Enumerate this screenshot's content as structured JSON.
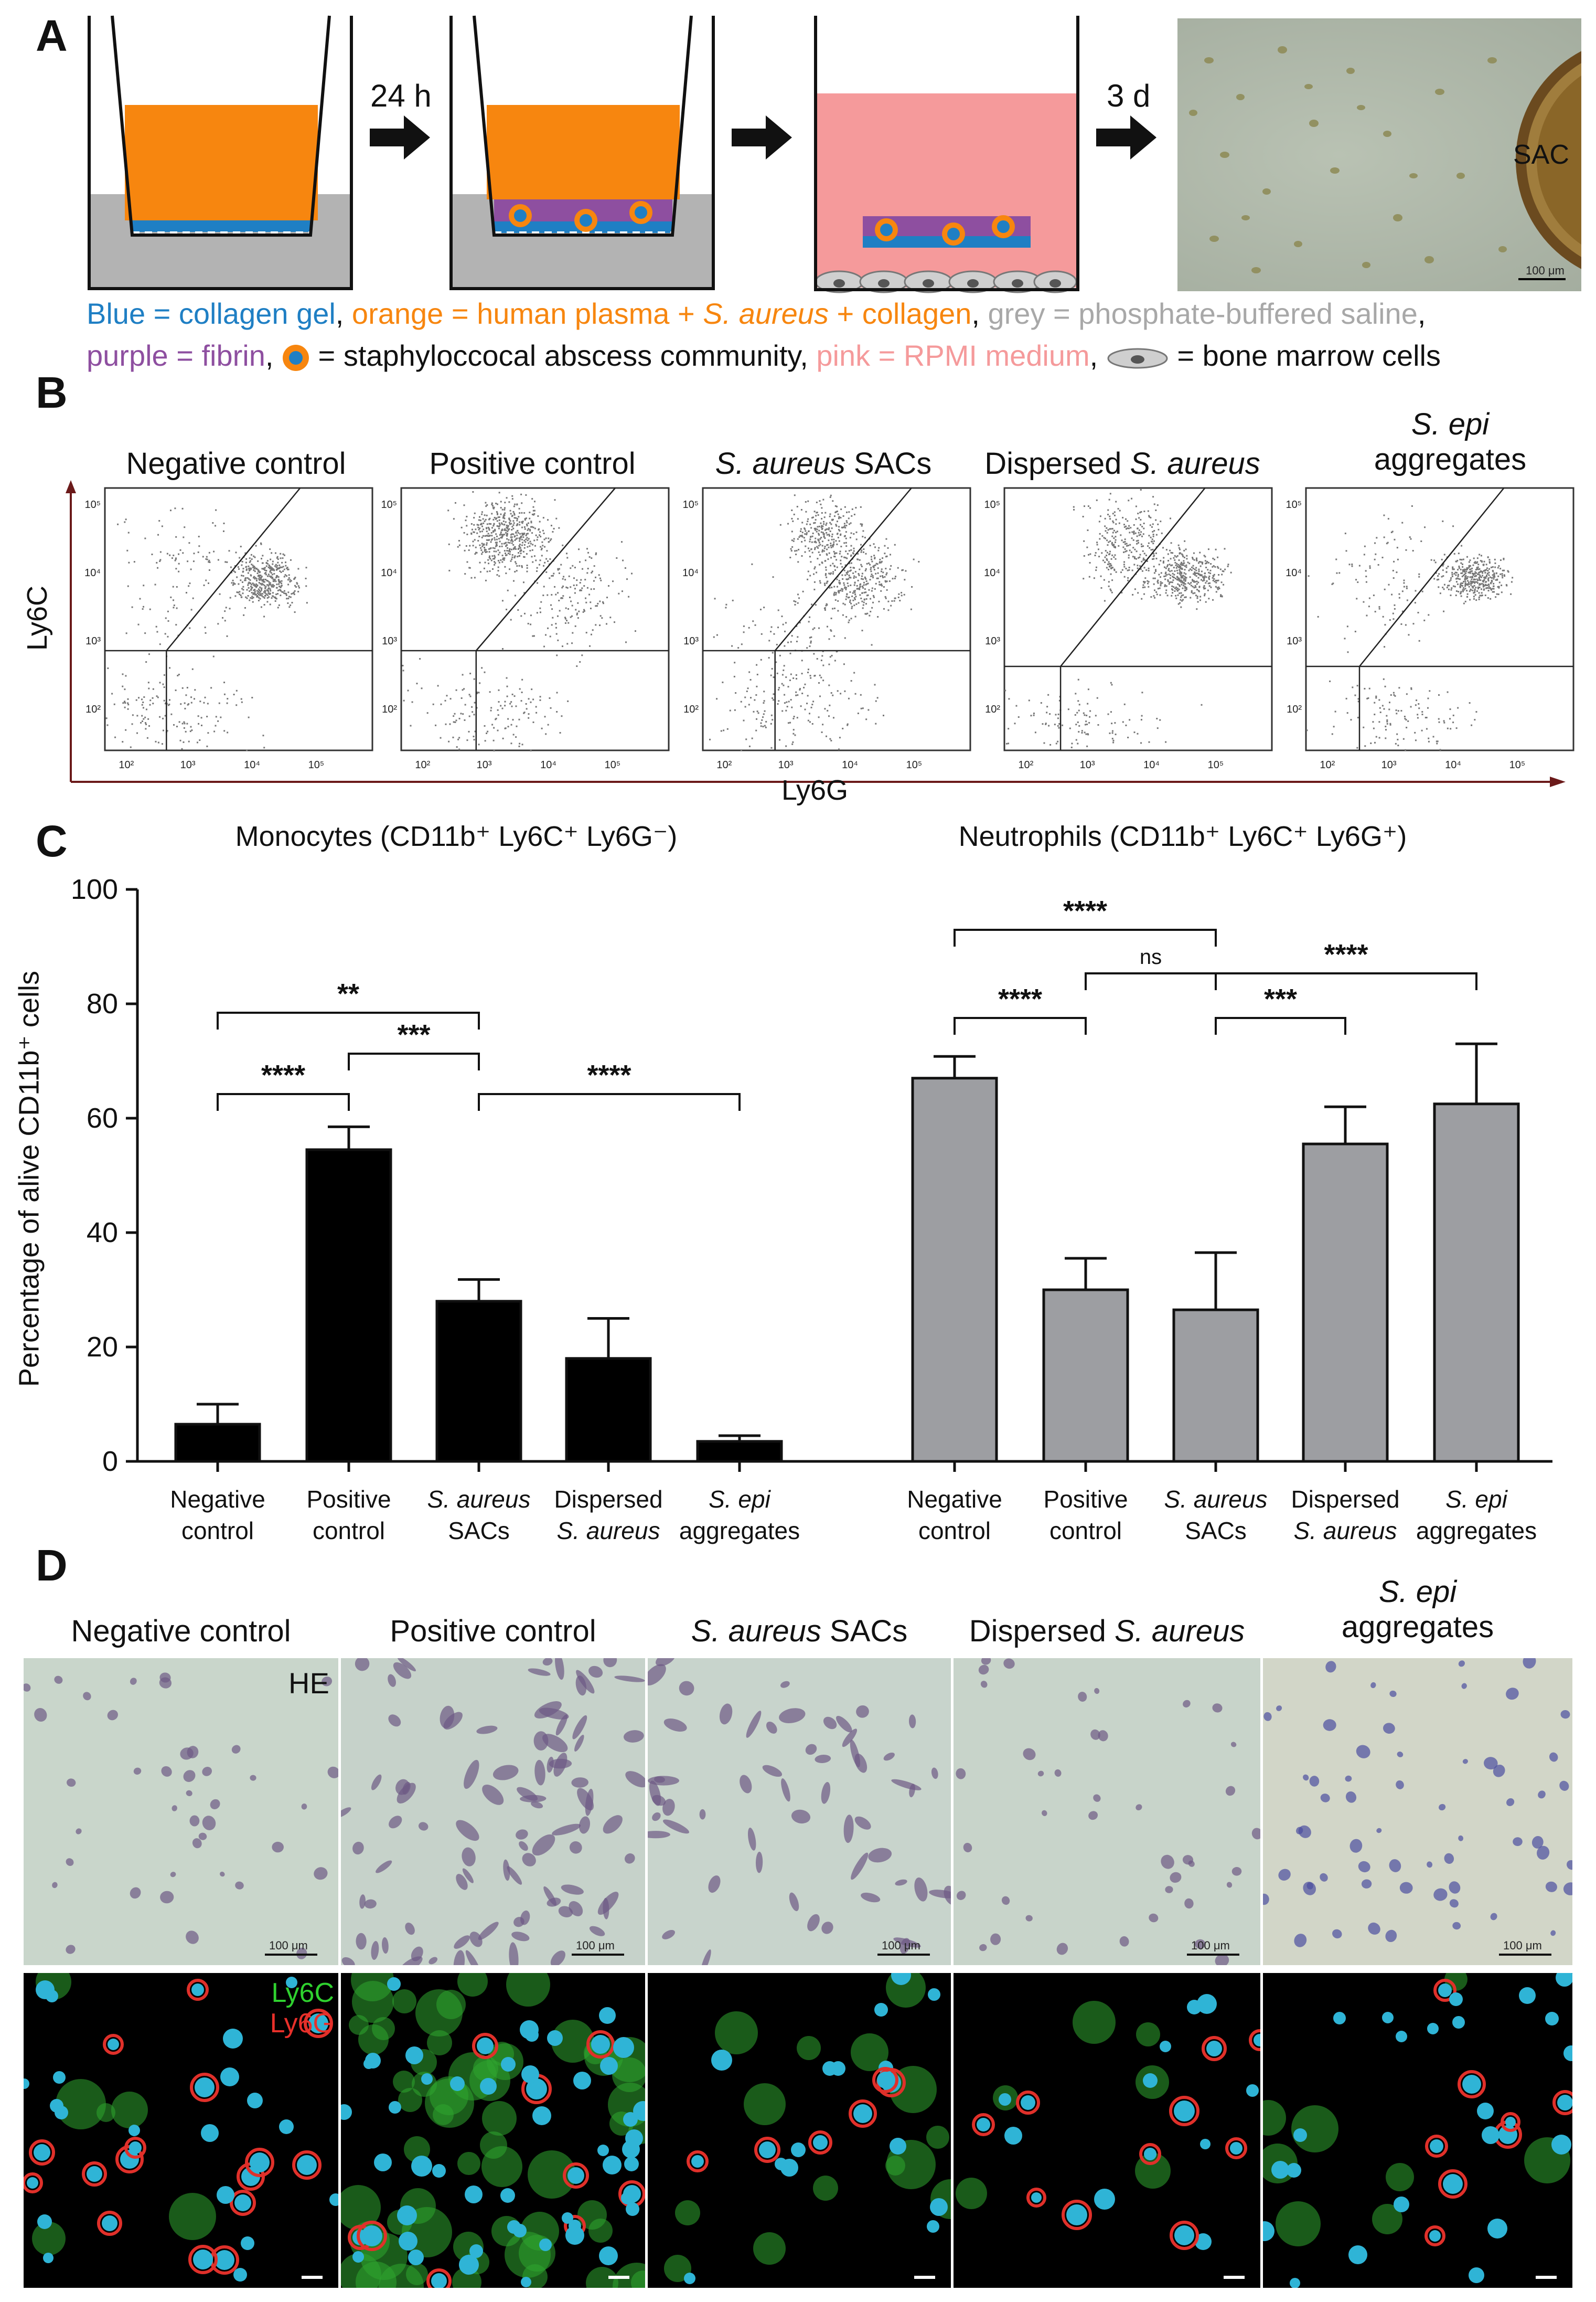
{
  "panels": {
    "a": "A",
    "b": "B",
    "c": "C",
    "d": "D"
  },
  "panel_a": {
    "arrow_1": "24 h",
    "arrow_2": "3 d",
    "sac_label": "SAC",
    "scale_label": "100 μm",
    "legend": {
      "blue": "Blue = collagen gel",
      "sep1": ", ",
      "orange_pre": "orange = human plasma + ",
      "orange_italic": "S. aureus",
      "orange_post": " + collagen",
      "sep2": ", ",
      "grey": "grey = phosphate-buffered saline",
      "sep3": ",",
      "purple": "purple = fibrin",
      "sac_eq": ", ",
      "sac_text": " = staphyloccocal abscess community, ",
      "pink": "pink = RPMI medium",
      "sep4": ", ",
      "bm_text": " = bone marrow cells"
    },
    "colors": {
      "blue": "#1f7fc4",
      "orange": "#f7860f",
      "grey": "#b3b3b3",
      "purple": "#8e4fa0",
      "pink": "#f59a9b"
    }
  },
  "panel_b": {
    "titles": [
      {
        "normal_pre": "Negative control",
        "italic": "",
        "normal_post": ""
      },
      {
        "normal_pre": "Positive control",
        "italic": "",
        "normal_post": ""
      },
      {
        "normal_pre": "",
        "italic": "S. aureus",
        "normal_post": " SACs"
      },
      {
        "normal_pre": "Dispersed ",
        "italic": "S. aureus",
        "normal_post": ""
      },
      {
        "normal_pre": "",
        "italic": "S. epi",
        "normal_post": "aggregates"
      }
    ],
    "ylabel": "Ly6C",
    "xlabel": "Ly6G",
    "yticks": [
      "10⁵",
      "10⁴",
      "10³",
      "10²"
    ],
    "xticks": [
      "10²",
      "10³",
      "10⁴",
      "10⁵"
    ]
  },
  "chart_data": [
    {
      "type": "bar",
      "title": "Monocytes (CD11b⁺ Ly6C⁺ Ly6G⁻)",
      "ylabel": "Percentage of alive CD11b⁺ cells",
      "ylim": [
        0,
        100
      ],
      "yticks": [
        "0",
        "20",
        "40",
        "60",
        "80",
        "100"
      ],
      "categories": [
        "Negative control",
        "Positive control",
        "S. aureus SACs",
        "Dispersed S. aureus",
        "S. epi aggregates"
      ],
      "category_lines": [
        [
          "Negative",
          "control"
        ],
        [
          "Positive",
          "control"
        ],
        [
          "S. aureus",
          "SACs"
        ],
        [
          "Dispersed",
          "S. aureus"
        ],
        [
          "S. epi",
          "aggregates"
        ]
      ],
      "values": [
        6.5,
        54.5,
        28,
        18,
        3.5
      ],
      "errors": [
        3.5,
        4,
        3.8,
        7,
        1
      ],
      "bar_color": "#000000",
      "significance": [
        {
          "from": 0,
          "to": 1,
          "level": 1,
          "label": "****"
        },
        {
          "from": 1,
          "to": 2,
          "level": 2,
          "label": "***"
        },
        {
          "from": 0,
          "to": 2,
          "level": 3,
          "label": "**"
        },
        {
          "from": 2,
          "to": 4,
          "level": 1,
          "label": "****"
        }
      ]
    },
    {
      "type": "bar",
      "title": "Neutrophils (CD11b⁺ Ly6C⁺ Ly6G⁺)",
      "ylim": [
        0,
        100
      ],
      "categories": [
        "Negative control",
        "Positive control",
        "S. aureus SACs",
        "Dispersed S. aureus",
        "S. epi aggregates"
      ],
      "category_lines": [
        [
          "Negative",
          "control"
        ],
        [
          "Positive",
          "control"
        ],
        [
          "S. aureus",
          "SACs"
        ],
        [
          "Dispersed",
          "S. aureus"
        ],
        [
          "S. epi",
          "aggregates"
        ]
      ],
      "values": [
        67,
        30,
        26.5,
        55.5,
        62.5
      ],
      "errors": [
        3.8,
        5.5,
        10,
        6.5,
        10.5
      ],
      "bar_color": "#9d9ea2",
      "significance": [
        {
          "from": 0,
          "to": 1,
          "level": 1,
          "label": "****"
        },
        {
          "from": 2,
          "to": 3,
          "level": 1,
          "label": "***"
        },
        {
          "from": 1,
          "to": 2,
          "level": 2,
          "label": "ns"
        },
        {
          "from": 2,
          "to": 4,
          "level": 2,
          "label": "****"
        },
        {
          "from": 0,
          "to": 2,
          "level": 3,
          "label": "****"
        }
      ]
    }
  ],
  "panel_d": {
    "titles": [
      {
        "normal_pre": "Negative control",
        "italic": "",
        "normal_post": ""
      },
      {
        "normal_pre": "Positive control",
        "italic": "",
        "normal_post": ""
      },
      {
        "normal_pre": "",
        "italic": "S. aureus",
        "normal_post": " SACs"
      },
      {
        "normal_pre": "Dispersed ",
        "italic": "S. aureus",
        "normal_post": ""
      },
      {
        "normal_pre": "",
        "italic": "S. epi",
        "normal_post": "aggregates"
      }
    ],
    "he_label": "HE",
    "scale_label": "100 μm",
    "ly6c_label": "Ly6C",
    "ly6g_label": "Ly6G"
  }
}
